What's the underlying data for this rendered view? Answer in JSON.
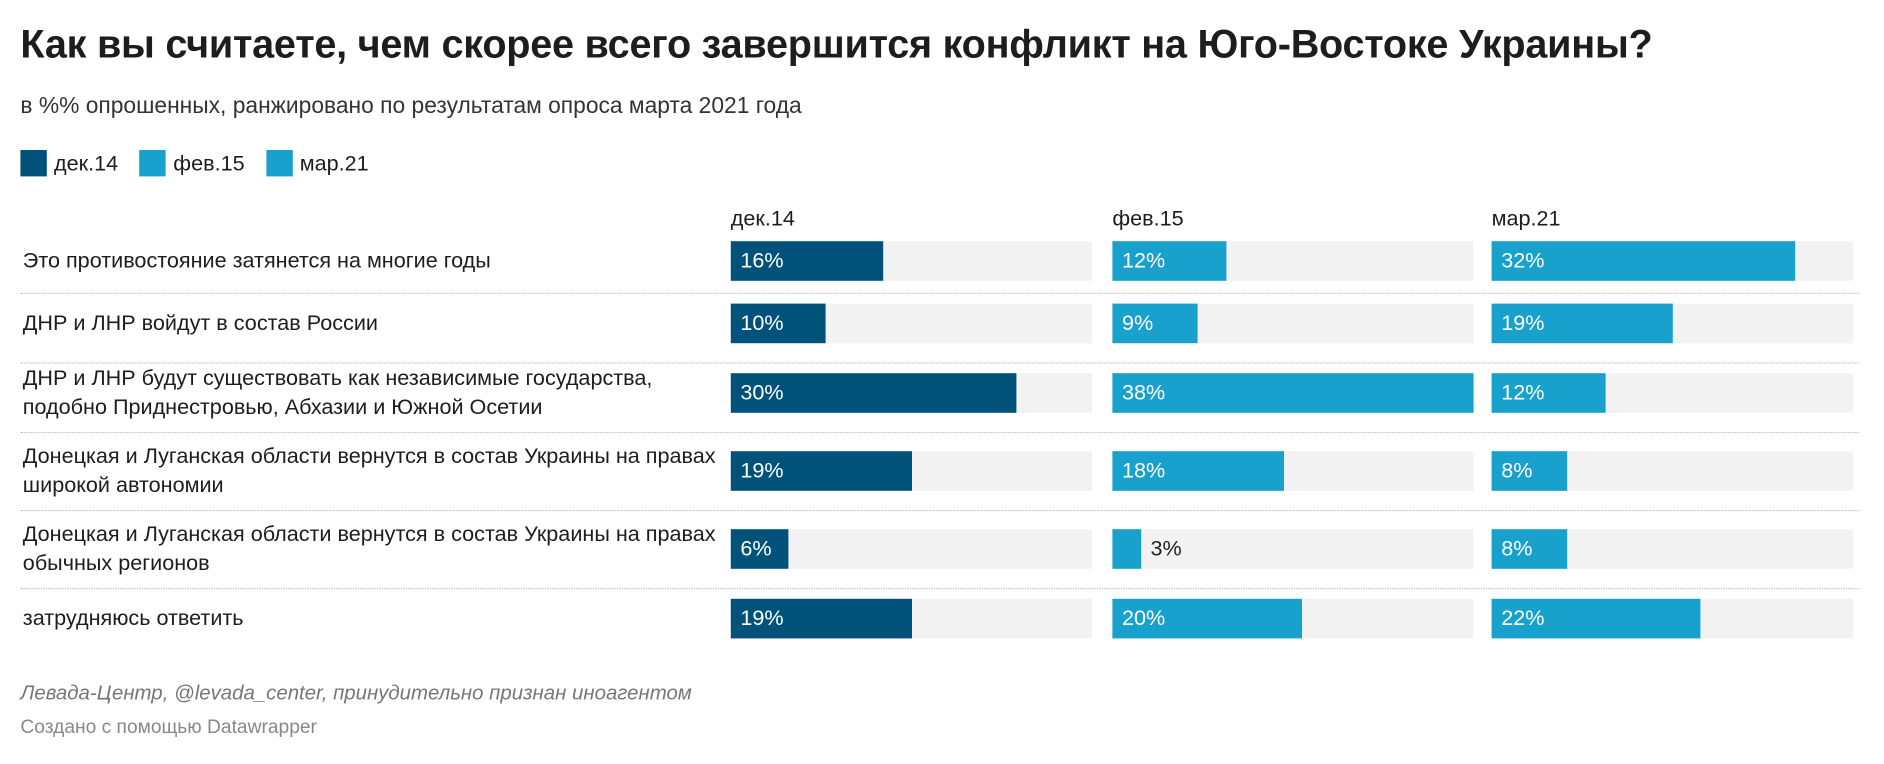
{
  "title": "Как вы считаете, чем скорее всего завершится конфликт на Юго-Востоке Украины?",
  "subtitle": "в %% опрошенных, ранжировано по результатам опроса марта 2021 года",
  "source": "Левада-Центр, @levada_center, принудительно признан иноагентом",
  "credit": "Создано с помощью Datawrapper",
  "chart_data": {
    "type": "bar",
    "orientation": "horizontal",
    "layout": "small-multiples",
    "legend_position": "top-left",
    "xlim": [
      0,
      38
    ],
    "unit": "%",
    "categories": [
      "Это противостояние затянется на многие годы",
      "ДНР и ЛНР войдут в состав России",
      "ДНР и ЛНР будут существовать как независимые государства, подобно Приднестровью, Абхазии и Южной Осетии",
      "Донецкая и Луганская области вернутся в состав Украины на правах широкой автономии",
      "Донецкая и Луганская области вернутся в состав Украины на правах обычных регионов",
      "затрудняюсь ответить"
    ],
    "series": [
      {
        "name": "дек.14",
        "color": "#00527a",
        "values": [
          16,
          10,
          30,
          19,
          6,
          19
        ]
      },
      {
        "name": "фев.15",
        "color": "#18a1cd",
        "values": [
          12,
          9,
          38,
          18,
          3,
          20
        ]
      },
      {
        "name": "мар.21",
        "color": "#18a1cd",
        "values": [
          32,
          19,
          12,
          8,
          8,
          22
        ]
      }
    ],
    "background_color": "#f2f2f2"
  }
}
